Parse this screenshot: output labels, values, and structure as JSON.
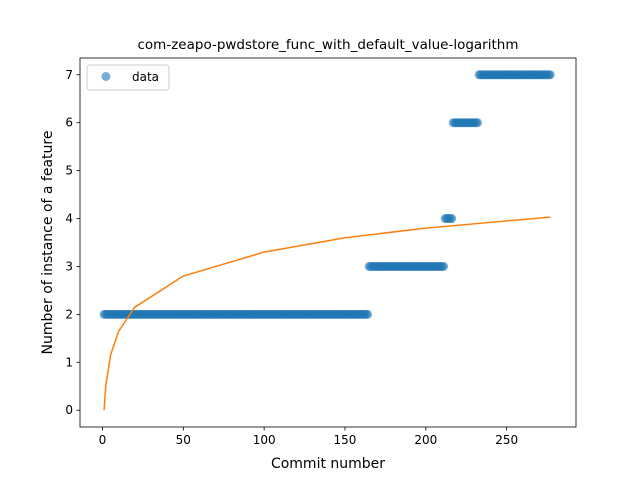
{
  "chart_data": {
    "type": "scatter",
    "title": "com-zeapo-pwdstore_func_with_default_value-logarithm",
    "xlabel": "Commit number",
    "ylabel": "Number of instance of a feature",
    "xlim": [
      -13.9,
      292.9
    ],
    "ylim": [
      -0.35,
      7.35
    ],
    "xticks": [
      0,
      50,
      100,
      150,
      200,
      250
    ],
    "yticks": [
      0,
      1,
      2,
      3,
      4,
      5,
      6,
      7
    ],
    "grid": false,
    "legend": {
      "position": "top-left",
      "entries": [
        "data"
      ]
    },
    "colors": {
      "data": "#1f77b4",
      "fit": "#ff7f0e"
    },
    "series": [
      {
        "name": "data",
        "kind": "scatter",
        "segments": [
          {
            "x_start": 1,
            "x_end": 164,
            "y": 2
          },
          {
            "x_start": 165,
            "x_end": 211,
            "y": 3
          },
          {
            "x_start": 212,
            "x_end": 216,
            "y": 4
          },
          {
            "x_start": 217,
            "x_end": 232,
            "y": 6
          },
          {
            "x_start": 233,
            "x_end": 277,
            "y": 7
          }
        ]
      },
      {
        "kind": "line",
        "model": "logarithmic",
        "points": [
          [
            1,
            0
          ],
          [
            2,
            0.5
          ],
          [
            5,
            1.15
          ],
          [
            10,
            1.65
          ],
          [
            20,
            2.15
          ],
          [
            50,
            2.8
          ],
          [
            100,
            3.3
          ],
          [
            150,
            3.6
          ],
          [
            200,
            3.8
          ],
          [
            250,
            3.95
          ],
          [
            277,
            4.03
          ]
        ]
      }
    ]
  }
}
